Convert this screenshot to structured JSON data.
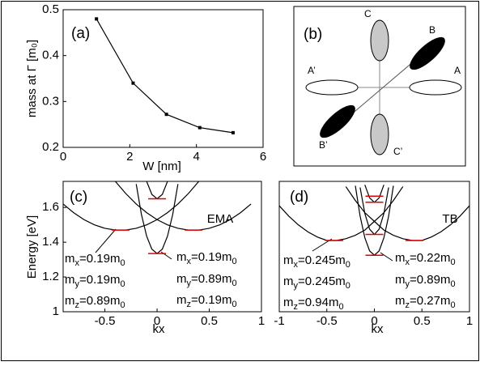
{
  "chart_data": [
    {
      "type": "line",
      "panel_label": "(a)",
      "xlabel": "W [nm]",
      "ylabel": "mass at Γ [m₀]",
      "xlim": [
        0,
        6
      ],
      "xticks": [
        0,
        2,
        4,
        6
      ],
      "ylim": [
        0.2,
        0.5
      ],
      "yticks": [
        0.2,
        0.3,
        0.4,
        0.5
      ],
      "series": [
        {
          "color": "#000000",
          "x": [
            1,
            2.1,
            3.1,
            4.1,
            5.1
          ],
          "values": [
            0.48,
            0.34,
            0.272,
            0.243,
            0.232
          ]
        }
      ]
    },
    {
      "type": "line",
      "panel_label": "(c)",
      "xlabel": "kx",
      "ylabel": "Energy [eV]",
      "model": "EMA",
      "xlim": [
        -0.9,
        1
      ],
      "xticks": [
        -0.5,
        0,
        0.5,
        1
      ],
      "ylim": [
        1,
        1.75
      ],
      "yticks": [
        1,
        1.2,
        1.4,
        1.6
      ],
      "series": [
        {
          "color": "#000000",
          "x": [
            -0.9,
            -0.8,
            -0.7,
            -0.6,
            -0.5,
            -0.4,
            -0.3,
            -0.2,
            -0.1,
            0,
            0.1,
            0.2,
            0.3,
            0.4
          ],
          "values": [
            1.62,
            1.57,
            1.53,
            1.5,
            1.48,
            1.47,
            1.47,
            1.48,
            1.5,
            1.53,
            1.57,
            1.62,
            1.68,
            1.75
          ]
        },
        {
          "color": "#000000",
          "x": [
            -0.4,
            -0.3,
            -0.2,
            -0.1,
            0,
            0.1,
            0.2,
            0.3,
            0.4,
            0.5,
            0.6,
            0.7,
            0.8,
            0.9
          ],
          "values": [
            1.75,
            1.68,
            1.62,
            1.57,
            1.53,
            1.5,
            1.48,
            1.47,
            1.47,
            1.48,
            1.5,
            1.53,
            1.57,
            1.62
          ]
        },
        {
          "color": "#000000",
          "x": [
            -0.2,
            -0.15,
            -0.1,
            -0.05,
            0,
            0.05,
            0.1,
            0.15,
            0.2
          ],
          "values": [
            1.735,
            1.56,
            1.435,
            1.36,
            1.335,
            1.36,
            1.435,
            1.56,
            1.735
          ]
        },
        {
          "color": "#000000",
          "x": [
            -0.1,
            -0.05,
            0,
            0.05,
            0.1
          ],
          "values": [
            1.75,
            1.675,
            1.65,
            1.675,
            1.75
          ]
        }
      ],
      "levels": {
        "color": "#e00000",
        "x": [
          -0.35,
          0.35,
          0,
          0
        ],
        "values": [
          1.47,
          1.47,
          1.335,
          1.65
        ]
      },
      "annotations": [
        [
          "m",
          "x",
          "=0.19m",
          "0"
        ],
        [
          "m",
          "y",
          "=0.19m",
          "0"
        ],
        [
          "m",
          "z",
          "=0.89m",
          "0"
        ],
        [
          "m",
          "x",
          "=0.19m",
          "0"
        ],
        [
          "m",
          "y",
          "=0.89m",
          "0"
        ],
        [
          "m",
          "z",
          "=0.19m",
          "0"
        ]
      ]
    },
    {
      "type": "line",
      "panel_label": "(d)",
      "xlabel": "kx",
      "model": "TB",
      "xlim": [
        -1,
        1
      ],
      "xticks": [
        -1,
        -0.5,
        0,
        0.5,
        1
      ],
      "ylim": [
        1,
        1.75
      ],
      "series": [
        {
          "color": "#000000",
          "x": [
            -1,
            -0.9,
            -0.8,
            -0.7,
            -0.6,
            -0.5,
            -0.4,
            -0.3,
            -0.2,
            -0.1,
            0,
            0.1,
            0.2,
            0.3
          ],
          "values": [
            1.61,
            1.55,
            1.5,
            1.46,
            1.43,
            1.41,
            1.41,
            1.42,
            1.44,
            1.47,
            1.52,
            1.57,
            1.64,
            1.72
          ]
        },
        {
          "color": "#000000",
          "x": [
            -0.3,
            -0.2,
            -0.1,
            0,
            0.1,
            0.2,
            0.3,
            0.4,
            0.5,
            0.6,
            0.7,
            0.8,
            0.9,
            1
          ],
          "values": [
            1.72,
            1.64,
            1.57,
            1.52,
            1.47,
            1.44,
            1.42,
            1.41,
            1.41,
            1.43,
            1.46,
            1.5,
            1.55,
            1.61
          ]
        },
        {
          "color": "#000000",
          "x": [
            -0.2,
            -0.15,
            -0.1,
            -0.05,
            0,
            0.05,
            0.1,
            0.15,
            0.2
          ],
          "values": [
            1.725,
            1.55,
            1.425,
            1.35,
            1.325,
            1.35,
            1.425,
            1.55,
            1.725
          ]
        },
        {
          "color": "#000000",
          "x": [
            -0.15,
            -0.1,
            -0.05,
            0,
            0.05,
            0.1,
            0.15
          ],
          "values": [
            1.715,
            1.565,
            1.475,
            1.445,
            1.475,
            1.565,
            1.715
          ]
        },
        {
          "color": "#000000",
          "x": [
            -0.1,
            -0.05,
            0,
            0.05,
            0.1
          ],
          "values": [
            1.73,
            1.655,
            1.63,
            1.655,
            1.73
          ]
        }
      ],
      "levels": {
        "color": "#e00000",
        "x": [
          -0.42,
          0.42,
          0,
          0,
          0,
          0
        ],
        "values": [
          1.41,
          1.41,
          1.325,
          1.445,
          1.63,
          1.665
        ]
      },
      "annotations": [
        [
          "m",
          "x",
          "=0.245m",
          "0"
        ],
        [
          "m",
          "y",
          "=0.245m",
          "0"
        ],
        [
          "m",
          "z",
          "=0.94m",
          "0"
        ],
        [
          "m",
          "x",
          "=0.22m",
          "0"
        ],
        [
          "m",
          "y",
          "=0.89m",
          "0"
        ],
        [
          "m",
          "z",
          "=0.27m",
          "0"
        ]
      ]
    }
  ],
  "diagram": {
    "panel_label": "(b)",
    "labels": [
      "A",
      "A’",
      "B",
      "B’",
      "C",
      "C’"
    ]
  }
}
